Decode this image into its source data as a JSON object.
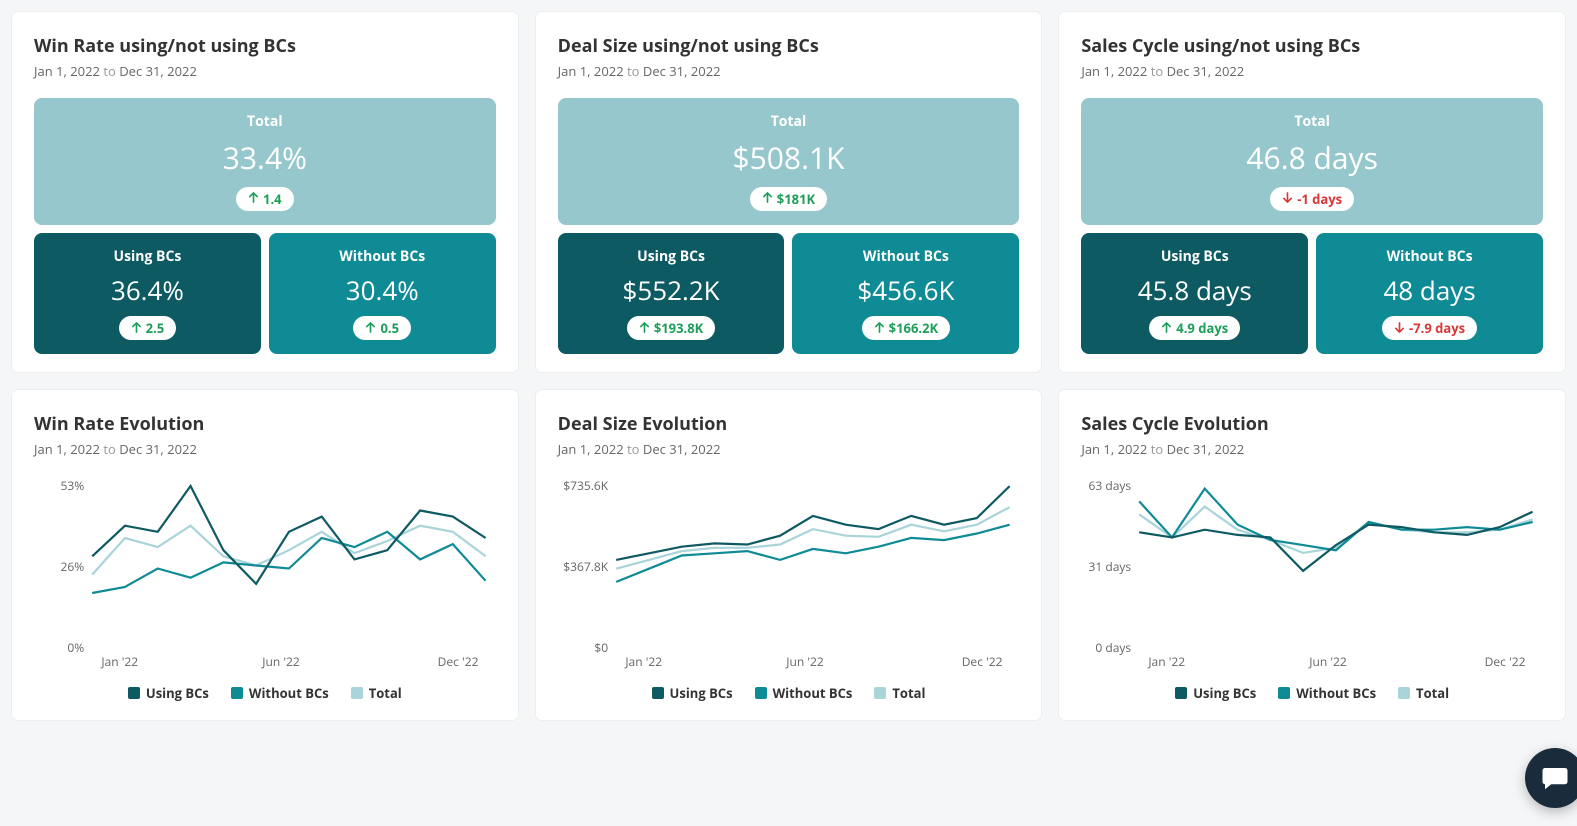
{
  "colors": {
    "total_bg": "#96c7cd",
    "using_bg": "#0e5a63",
    "without_bg": "#0f8b96",
    "up": "#1e9e5a",
    "down": "#d93838",
    "series_using": "#0e5a63",
    "series_without": "#0f8b96",
    "series_total": "#a8d4da",
    "axis": "#666666"
  },
  "daterange": {
    "from": "Jan 1, 2022",
    "to_word": "to",
    "to": "Dec 31, 2022"
  },
  "labels": {
    "total": "Total",
    "using": "Using BCs",
    "without": "Without BCs"
  },
  "cards": [
    {
      "key": "winrate",
      "title": "Win Rate using/not using BCs",
      "total": {
        "value": "33.4%",
        "delta": "1.4",
        "dir": "up"
      },
      "using": {
        "value": "36.4%",
        "delta": "2.5",
        "dir": "up"
      },
      "without": {
        "value": "30.4%",
        "delta": "0.5",
        "dir": "up"
      }
    },
    {
      "key": "dealsize",
      "title": "Deal Size using/not using BCs",
      "total": {
        "value": "$508.1K",
        "delta": "$181K",
        "dir": "up"
      },
      "using": {
        "value": "$552.2K",
        "delta": "$193.8K",
        "dir": "up"
      },
      "without": {
        "value": "$456.6K",
        "delta": "$166.2K",
        "dir": "up"
      }
    },
    {
      "key": "salescycle",
      "title": "Sales Cycle using/not using BCs",
      "total": {
        "value": "46.8 days",
        "delta": "-1 days",
        "dir": "down"
      },
      "using": {
        "value": "45.8 days",
        "delta": "4.9 days",
        "dir": "up"
      },
      "without": {
        "value": "48 days",
        "delta": "-7.9 days",
        "dir": "down"
      }
    }
  ],
  "charts": [
    {
      "key": "winrate_evo",
      "title": "Win Rate Evolution",
      "y_ticks": [
        "53%",
        "26%",
        "0%"
      ],
      "y_domain": [
        0,
        53
      ],
      "x_ticks": [
        "Jan '22",
        "Jun '22",
        "Dec '22"
      ],
      "series": {
        "using": [
          30,
          40,
          38,
          53,
          32,
          21,
          38,
          43,
          29,
          32,
          45,
          43,
          36
        ],
        "without": [
          18,
          20,
          26,
          23,
          28,
          27,
          26,
          36,
          33,
          38,
          29,
          34,
          22
        ],
        "total": [
          24,
          36,
          33,
          40,
          30,
          27,
          32,
          38,
          31,
          35,
          40,
          38,
          30
        ]
      }
    },
    {
      "key": "dealsize_evo",
      "title": "Deal Size Evolution",
      "y_ticks": [
        "$735.6K",
        "$367.8K",
        "$0"
      ],
      "y_domain": [
        0,
        735.6
      ],
      "x_ticks": [
        "Jan '22",
        "Jun '22",
        "Dec '22"
      ],
      "series": {
        "using": [
          400,
          430,
          460,
          475,
          470,
          510,
          600,
          560,
          540,
          600,
          560,
          590,
          735
        ],
        "without": [
          300,
          360,
          420,
          430,
          440,
          400,
          450,
          430,
          460,
          500,
          490,
          520,
          560
        ],
        "total": [
          360,
          400,
          440,
          455,
          455,
          470,
          540,
          510,
          505,
          560,
          530,
          560,
          640
        ]
      }
    },
    {
      "key": "salescycle_evo",
      "title": "Sales Cycle Evolution",
      "y_ticks": [
        "63 days",
        "31 days",
        "0 days"
      ],
      "y_domain": [
        0,
        63
      ],
      "x_ticks": [
        "Jan '22",
        "Jun '22",
        "Dec '22"
      ],
      "series": {
        "using": [
          45,
          43,
          46,
          44,
          43,
          30,
          40,
          48,
          47,
          45,
          44,
          47,
          53
        ],
        "without": [
          57,
          43,
          62,
          48,
          42,
          40,
          38,
          49,
          46,
          46,
          47,
          46,
          49
        ],
        "total": [
          52,
          43,
          55,
          46,
          42,
          37,
          39,
          49,
          46,
          45,
          45,
          46,
          50
        ]
      }
    }
  ],
  "legend": {
    "using": "Using BCs",
    "without": "Without BCs",
    "total": "Total"
  }
}
